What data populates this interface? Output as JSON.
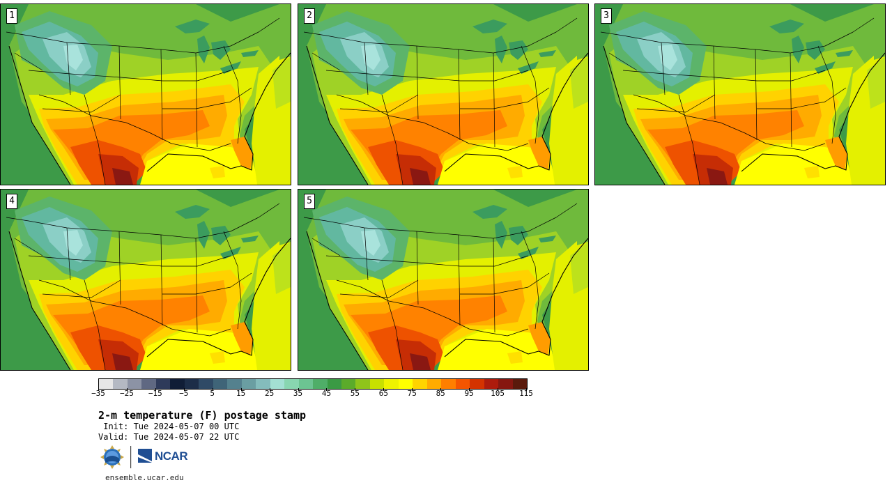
{
  "product": {
    "title": "2-m temperature (F) postage stamp",
    "init_line": " Init: Tue 2024-05-07 00 UTC",
    "valid_line": "Valid: Tue 2024-05-07 22 UTC"
  },
  "members": [
    "1",
    "2",
    "3",
    "4",
    "5"
  ],
  "colorbar": {
    "tick_labels": [
      "−35",
      "−25",
      "−15",
      "−5",
      "5",
      "15",
      "25",
      "35",
      "45",
      "55",
      "65",
      "75",
      "85",
      "95",
      "105",
      "115"
    ],
    "colors": [
      "#e6e6e6",
      "#b4b9c3",
      "#8c93a5",
      "#5f6882",
      "#2e3a5a",
      "#101d36",
      "#1c2d48",
      "#2f4a66",
      "#3f6478",
      "#54818e",
      "#6a9ea2",
      "#84bcbc",
      "#a3e0d3",
      "#88d6b0",
      "#6cc492",
      "#4fae68",
      "#3a9a44",
      "#5bab2a",
      "#8fc41a",
      "#c8e000",
      "#eef300",
      "#ffff00",
      "#ffd400",
      "#ffab00",
      "#ff7f00",
      "#f45500",
      "#d43300",
      "#ad1b0c",
      "#861710",
      "#5a1a0c"
    ]
  },
  "logos": {
    "nsf_icon": "nsf-logo-icon",
    "ncar_text": "NCAR"
  },
  "footer": {
    "url": "ensemble.ucar.edu"
  }
}
